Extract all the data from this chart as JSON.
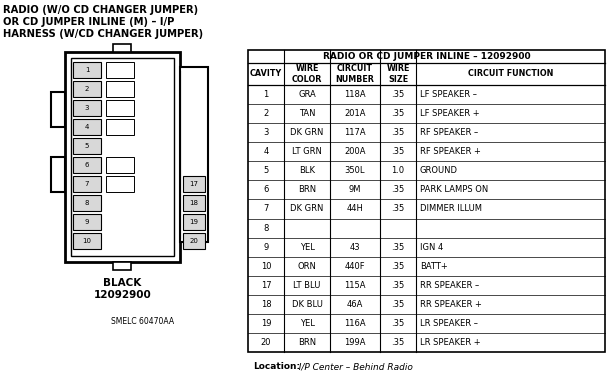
{
  "title_line1": "RADIO (W/O CD CHANGER JUMPER)",
  "title_line2": "OR CD JUMPER INLINE (M) – I/P",
  "title_line3": "HARNESS (W/CD CHANGER JUMPER)",
  "table_title": "RADIO OR CD JUMPER INLINE – 12092900",
  "col_headers": [
    "CAVITY",
    "WIRE\nCOLOR",
    "CIRCUIT\nNUMBER",
    "WIRE\nSIZE",
    "CIRCUIT FUNCTION"
  ],
  "rows": [
    [
      "1",
      "GRA",
      "118A",
      ".35",
      "LF SPEAKER –"
    ],
    [
      "2",
      "TAN",
      "201A",
      ".35",
      "LF SPEAKER +"
    ],
    [
      "3",
      "DK GRN",
      "117A",
      ".35",
      "RF SPEAKER –"
    ],
    [
      "4",
      "LT GRN",
      "200A",
      ".35",
      "RF SPEAKER +"
    ],
    [
      "5",
      "BLK",
      "350L",
      "1.0",
      "GROUND"
    ],
    [
      "6",
      "BRN",
      "9M",
      ".35",
      "PARK LAMPS ON"
    ],
    [
      "7",
      "DK GRN",
      "44H",
      ".35",
      "DIMMER ILLUM"
    ],
    [
      "8",
      "",
      "",
      "",
      ""
    ],
    [
      "9",
      "YEL",
      "43",
      ".35",
      "IGN 4"
    ],
    [
      "10",
      "ORN",
      "440F",
      ".35",
      "BATT+"
    ],
    [
      "17",
      "LT BLU",
      "115A",
      ".35",
      "RR SPEAKER –"
    ],
    [
      "18",
      "DK BLU",
      "46A",
      ".35",
      "RR SPEAKER +"
    ],
    [
      "19",
      "YEL",
      "116A",
      ".35",
      "LR SPEAKER –"
    ],
    [
      "20",
      "BRN",
      "199A",
      ".35",
      "LR SPEAKER +"
    ]
  ],
  "connector_label_line1": "BLACK",
  "connector_label_line2": "12092900",
  "footnote": "SMELC 60470AA",
  "location_bold": "Location:",
  "location_rest": "  I/P Center – Behind Radio",
  "bg_color": "#ffffff",
  "text_color": "#000000"
}
